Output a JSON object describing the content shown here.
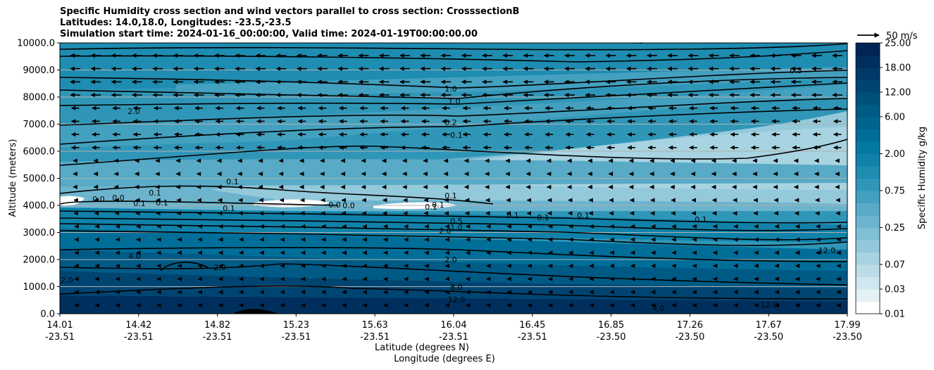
{
  "chart_data": {
    "type": "contour",
    "title_lines": [
      "Specific Humidity cross section and wind vectors parallel to cross section: CrosssectionB",
      "Latitudes: 14.0,18.0, Longitudes: -23.5,-23.5",
      "Simulation start time: 2024-01-16_00:00:00, Valid time: 2024-01-19T00:00:00.00"
    ],
    "ylabel": "Altitude (meters)",
    "xlabel_lines": [
      "Latitude (degrees N)",
      "Longitude (degrees E)"
    ],
    "ylim": [
      0,
      10000
    ],
    "y_ticks": [
      "0.0",
      "1000.0",
      "2000.0",
      "3000.0",
      "4000.0",
      "5000.0",
      "6000.0",
      "7000.0",
      "8000.0",
      "9000.0",
      "10000.0"
    ],
    "x_ticks": [
      {
        "lat": "14.01",
        "lon": "-23.51"
      },
      {
        "lat": "14.42",
        "lon": "-23.51"
      },
      {
        "lat": "14.82",
        "lon": "-23.51"
      },
      {
        "lat": "15.23",
        "lon": "-23.51"
      },
      {
        "lat": "15.63",
        "lon": "-23.51"
      },
      {
        "lat": "16.04",
        "lon": "-23.51"
      },
      {
        "lat": "16.45",
        "lon": "-23.51"
      },
      {
        "lat": "16.85",
        "lon": "-23.50"
      },
      {
        "lat": "17.26",
        "lon": "-23.50"
      },
      {
        "lat": "17.67",
        "lon": "-23.50"
      },
      {
        "lat": "17.99",
        "lon": "-23.50"
      }
    ],
    "grid": "horizontal",
    "colorbar": {
      "label": "Specific Humidity g/kg",
      "levels": [
        0.01,
        0.02,
        0.03,
        0.05,
        0.07,
        0.1,
        0.15,
        0.25,
        0.35,
        0.5,
        0.75,
        1.0,
        1.5,
        2.0,
        3.0,
        4.0,
        6.0,
        8.0,
        12.0,
        15.0,
        18.0,
        22.0,
        25.0
      ],
      "tick_labels": [
        "0.01",
        "0.03",
        "0.07",
        "0.25",
        "0.75",
        "2.00",
        "6.00",
        "12.00",
        "18.00",
        "25.00"
      ],
      "colors": [
        "#ffffff",
        "#e4f1f5",
        "#d0e7ef",
        "#bcdde8",
        "#a8d3e1",
        "#94c9db",
        "#80bfd4",
        "#6cb4cd",
        "#58aac6",
        "#44a0bf",
        "#3096b8",
        "#1f8cb1",
        "#1082aa",
        "#0578a2",
        "#006e99",
        "#00648f",
        "#005a86",
        "#00507c",
        "#004572",
        "#003a68",
        "#002f5e",
        "#002454"
      ]
    },
    "quiver_key": {
      "label": "50 m/s",
      "value": 50
    },
    "contour_labels": [
      "0.2",
      "0.1",
      "1.0",
      "1.0",
      "2.0",
      "0.2",
      "0.1",
      "0.1",
      "0.5",
      "0.1",
      "0.0",
      "0.0",
      "0.1",
      "0.1",
      "0.1",
      "0.0",
      "0.0",
      "0.1",
      "0.1",
      "0.1",
      "0.1",
      "0.1",
      "0.1",
      "0.1",
      "0.5",
      "1.0",
      "2.0",
      "2.0",
      "4.0",
      "2.0",
      "2.0",
      "4.0",
      "8.0",
      "12.0",
      "12.0",
      "12.0"
    ]
  }
}
